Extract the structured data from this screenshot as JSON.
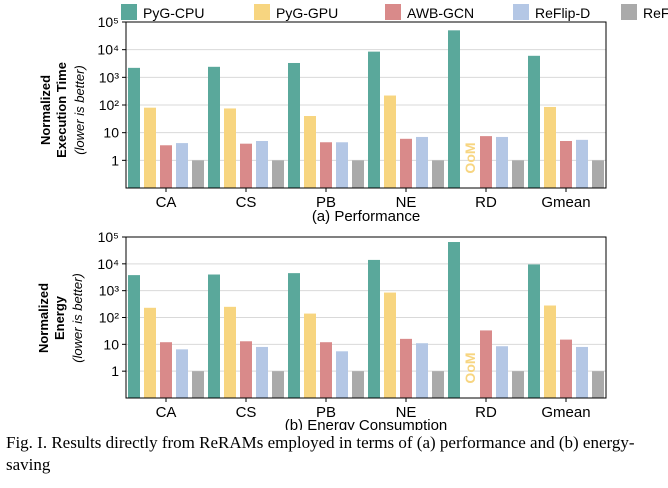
{
  "legend": [
    {
      "name": "PyG-CPU",
      "color": "#5aa89b"
    },
    {
      "name": "PyG-GPU",
      "color": "#f7d580"
    },
    {
      "name": "AWB-GCN",
      "color": "#d98a8a"
    },
    {
      "name": "ReFlip-D",
      "color": "#b4c7e5"
    },
    {
      "name": "ReFlip",
      "color": "#aaaaaa"
    }
  ],
  "chart_data": [
    {
      "type": "bar",
      "title": "(a) Performance",
      "ylabel": [
        "Normalized",
        "Execution Time",
        "(lower is better)"
      ],
      "yscale": "log",
      "ylim": [
        0.1,
        100000
      ],
      "yticks": [
        "1",
        "10",
        "10²",
        "10³",
        "10⁴",
        "10⁵"
      ],
      "grid": "y",
      "categories": [
        "CA",
        "CS",
        "PB",
        "NE",
        "RD",
        "Gmean"
      ],
      "series": [
        {
          "name": "PyG-CPU",
          "values": [
            2200,
            2400,
            3300,
            8500,
            50000,
            6000
          ]
        },
        {
          "name": "PyG-GPU",
          "values": [
            80,
            75,
            40,
            220,
            null,
            85
          ]
        },
        {
          "name": "AWB-GCN",
          "values": [
            3.5,
            4,
            4.5,
            6,
            7.5,
            5
          ]
        },
        {
          "name": "ReFlip-D",
          "values": [
            4.2,
            5,
            4.5,
            7,
            7,
            5.5
          ]
        },
        {
          "name": "ReFlip",
          "values": [
            1,
            1,
            1,
            1,
            1,
            1
          ]
        }
      ],
      "annotation": "OoM"
    },
    {
      "type": "bar",
      "title": "(b)  Energy Consumption",
      "ylabel": [
        "Normalized",
        "Energy",
        "(lower is better)"
      ],
      "yscale": "log",
      "ylim": [
        0.1,
        100000
      ],
      "yticks": [
        "1",
        "10",
        "10²",
        "10³",
        "10⁴",
        "10⁵"
      ],
      "grid": "y",
      "categories": [
        "CA",
        "CS",
        "PB",
        "NE",
        "RD",
        "Gmean"
      ],
      "series": [
        {
          "name": "PyG-CPU",
          "values": [
            3800,
            4000,
            4500,
            14000,
            65000,
            9500
          ]
        },
        {
          "name": "PyG-GPU",
          "values": [
            230,
            250,
            140,
            850,
            null,
            280
          ]
        },
        {
          "name": "AWB-GCN",
          "values": [
            12,
            13,
            12,
            16,
            33,
            15
          ]
        },
        {
          "name": "ReFlip-D",
          "values": [
            6.5,
            8,
            5.5,
            11,
            8.5,
            8
          ]
        },
        {
          "name": "ReFlip",
          "values": [
            1,
            1,
            1,
            1,
            1,
            1
          ]
        }
      ],
      "annotation": "OoM"
    }
  ],
  "caption": "Fig. I.  Results directly from ReRAMs employed in terms of (a) performance and (b) energy-saving"
}
